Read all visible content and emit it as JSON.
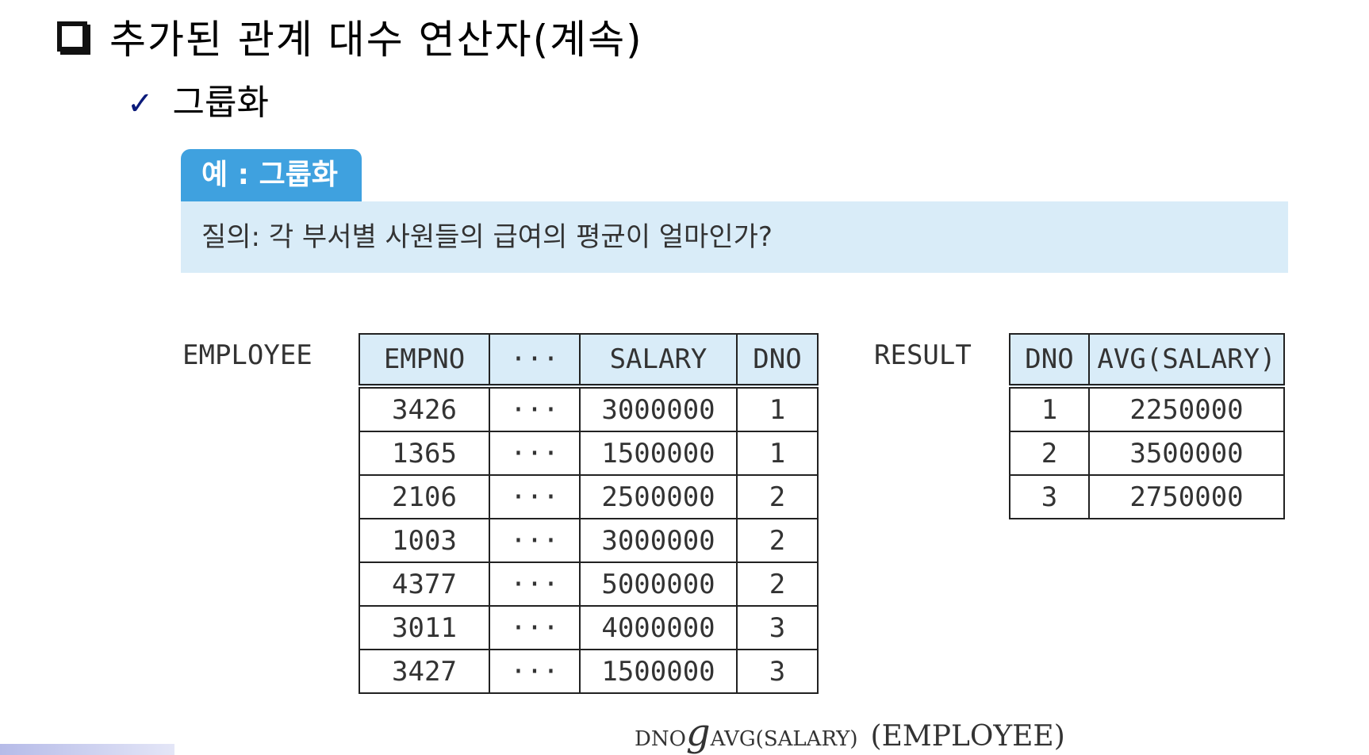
{
  "slide": {
    "title": "추가된 관계 대수 연산자(계속)",
    "subheading": "그룹화",
    "check_mark": "✓"
  },
  "example": {
    "tab_label": "예 : 그룹화",
    "query": "질의: 각 부서별 사원들의 급여의 평균이 얼마인가?"
  },
  "employee": {
    "label": "EMPLOYEE",
    "headers": [
      "EMPNO",
      "···",
      "SALARY",
      "DNO"
    ],
    "rows": [
      [
        "3426",
        "···",
        "3000000",
        "1"
      ],
      [
        "1365",
        "···",
        "1500000",
        "1"
      ],
      [
        "2106",
        "···",
        "2500000",
        "2"
      ],
      [
        "1003",
        "···",
        "3000000",
        "2"
      ],
      [
        "4377",
        "···",
        "5000000",
        "2"
      ],
      [
        "3011",
        "···",
        "4000000",
        "3"
      ],
      [
        "3427",
        "···",
        "1500000",
        "3"
      ]
    ]
  },
  "result": {
    "label": "RESULT",
    "headers": [
      "DNO",
      "AVG(SALARY)"
    ],
    "rows": [
      [
        "1",
        "2250000"
      ],
      [
        "2",
        "3500000"
      ],
      [
        "3",
        "2750000"
      ]
    ]
  },
  "formula": {
    "group_attr": "DNO",
    "operator": "g",
    "function": "AVG(SALARY)",
    "argument": "(EMPLOYEE)"
  },
  "colors": {
    "tab_blue": "#3fa1df",
    "light_blue": "#d9ecf8",
    "check_navy": "#0a1a7a"
  }
}
